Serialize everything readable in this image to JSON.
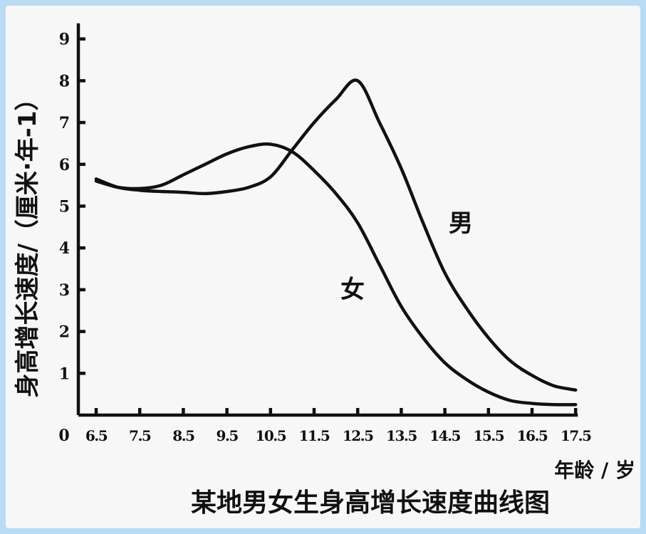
{
  "chart_data": {
    "type": "line",
    "title": "某地男女生身高增长速度曲线图",
    "ylabel": "身高增长速度/（厘米·年-1）",
    "xlabel": "年龄 / 岁",
    "origin_label": "0",
    "ylim": [
      0,
      9
    ],
    "yticks": [
      "1",
      "2",
      "3",
      "4",
      "5",
      "6",
      "7",
      "8",
      "9"
    ],
    "xticks": [
      "6.5",
      "7.5",
      "8.5",
      "9.5",
      "10.5",
      "11.5",
      "12.5",
      "13.5",
      "14.5",
      "15.5",
      "16.5",
      "17.5"
    ],
    "xlim": [
      6.5,
      17.5
    ],
    "grid": false,
    "series": [
      {
        "name": "男",
        "x": [
          6.5,
          7.0,
          7.5,
          8.0,
          8.5,
          9.0,
          9.5,
          10.0,
          10.5,
          11.0,
          11.5,
          12.0,
          12.5,
          13.0,
          13.5,
          14.0,
          14.5,
          15.0,
          15.5,
          16.0,
          16.5,
          17.0,
          17.5
        ],
        "y": [
          5.65,
          5.45,
          5.38,
          5.35,
          5.33,
          5.3,
          5.35,
          5.45,
          5.7,
          6.35,
          7.0,
          7.55,
          8.0,
          7.0,
          5.9,
          4.6,
          3.4,
          2.55,
          1.85,
          1.3,
          0.95,
          0.7,
          0.6
        ]
      },
      {
        "name": "女",
        "x": [
          6.5,
          7.0,
          7.5,
          8.0,
          8.5,
          9.0,
          9.5,
          10.0,
          10.5,
          11.0,
          11.5,
          12.0,
          12.5,
          13.0,
          13.5,
          14.0,
          14.5,
          15.0,
          15.5,
          16.0,
          16.5,
          17.0,
          17.5
        ],
        "y": [
          5.6,
          5.45,
          5.42,
          5.5,
          5.75,
          6.0,
          6.25,
          6.42,
          6.48,
          6.3,
          5.85,
          5.3,
          4.6,
          3.6,
          2.6,
          1.85,
          1.25,
          0.85,
          0.55,
          0.35,
          0.28,
          0.25,
          0.25
        ]
      }
    ]
  }
}
